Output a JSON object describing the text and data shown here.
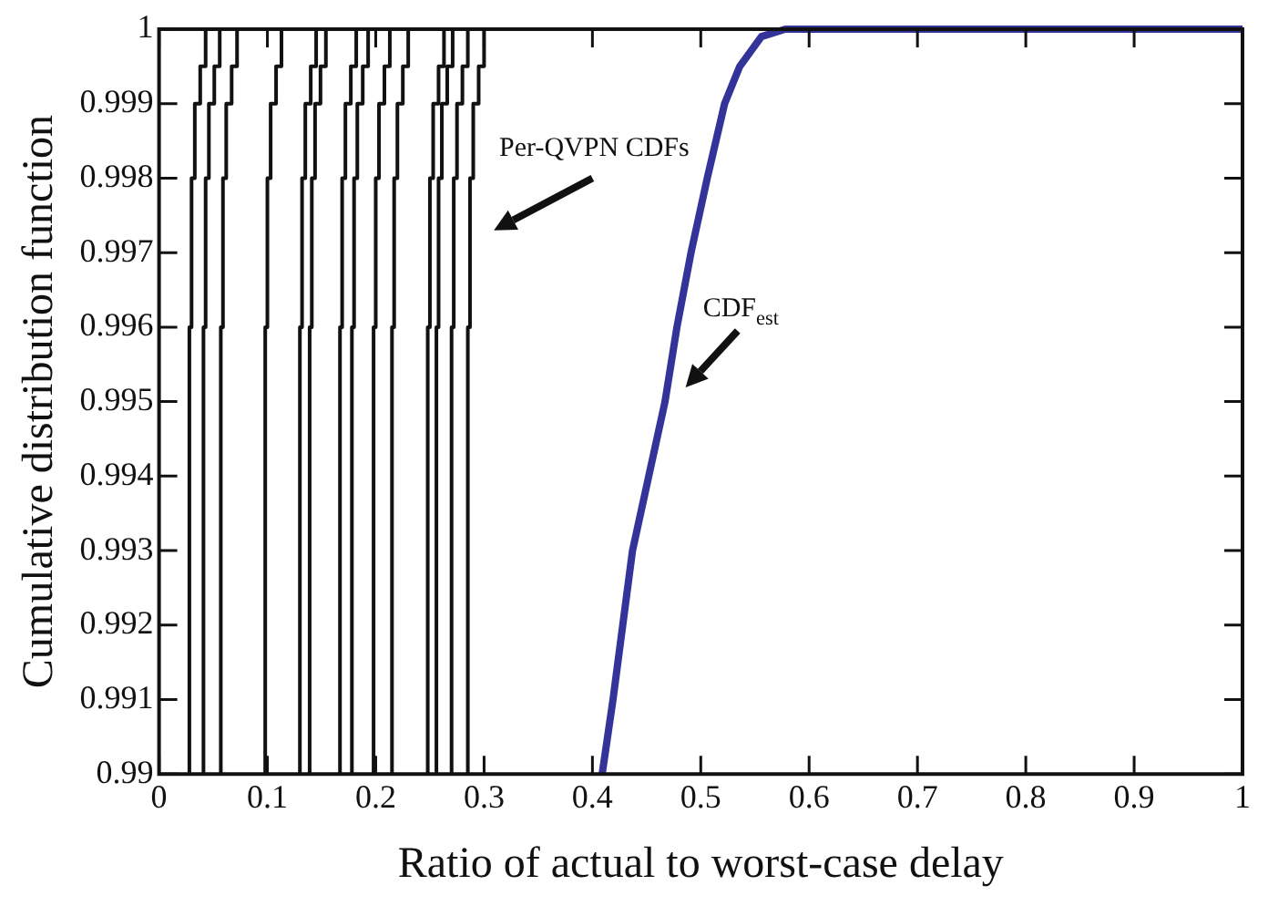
{
  "chart_data": {
    "type": "step",
    "xlabel": "Ratio of actual to worst-case delay",
    "ylabel": "Cumulative distribution function",
    "xlim": [
      0,
      1
    ],
    "ylim": [
      0.99,
      1
    ],
    "xticks": [
      0,
      0.1,
      0.2,
      0.3,
      0.4,
      0.5,
      0.6,
      0.7,
      0.8,
      0.9,
      1
    ],
    "yticks": [
      0.99,
      0.991,
      0.992,
      0.993,
      0.994,
      0.995,
      0.996,
      0.997,
      0.998,
      0.999,
      1
    ],
    "grid": false,
    "legend": false,
    "marker": "none",
    "line_style": "solid",
    "annotations": [
      "Per-QVPN CDFs",
      "CDF$_{est}$"
    ],
    "series": [
      {
        "color": "#111111",
        "x": [
          0.028,
          0.028,
          0.03,
          0.033,
          0.038,
          0.043,
          0.053
        ],
        "values": [
          0.99,
          0.993,
          0.996,
          0.998,
          0.999,
          0.9995,
          1
        ]
      },
      {
        "color": "#111111",
        "x": [
          0.041,
          0.041,
          0.043,
          0.046,
          0.051,
          0.056,
          0.066
        ],
        "values": [
          0.99,
          0.993,
          0.996,
          0.998,
          0.999,
          0.9995,
          1
        ]
      },
      {
        "color": "#111111",
        "x": [
          0.057,
          0.057,
          0.059,
          0.062,
          0.067,
          0.072,
          0.082
        ],
        "values": [
          0.99,
          0.993,
          0.996,
          0.998,
          0.999,
          0.9995,
          1
        ]
      },
      {
        "color": "#111111",
        "x": [
          0.098,
          0.098,
          0.1,
          0.103,
          0.108,
          0.113,
          0.123
        ],
        "values": [
          0.99,
          0.993,
          0.996,
          0.998,
          0.999,
          0.9995,
          1
        ]
      },
      {
        "color": "#111111",
        "x": [
          0.13,
          0.13,
          0.132,
          0.135,
          0.14,
          0.145,
          0.155
        ],
        "values": [
          0.99,
          0.993,
          0.996,
          0.998,
          0.999,
          0.9995,
          1
        ]
      },
      {
        "color": "#111111",
        "x": [
          0.139,
          0.139,
          0.141,
          0.144,
          0.149,
          0.154,
          0.164
        ],
        "values": [
          0.99,
          0.993,
          0.996,
          0.998,
          0.999,
          0.9995,
          1
        ]
      },
      {
        "color": "#111111",
        "x": [
          0.167,
          0.167,
          0.169,
          0.172,
          0.177,
          0.182,
          0.192
        ],
        "values": [
          0.99,
          0.993,
          0.996,
          0.998,
          0.999,
          0.9995,
          1
        ]
      },
      {
        "color": "#111111",
        "x": [
          0.178,
          0.178,
          0.18,
          0.183,
          0.188,
          0.193,
          0.203
        ],
        "values": [
          0.99,
          0.993,
          0.996,
          0.998,
          0.999,
          0.9995,
          1
        ]
      },
      {
        "color": "#111111",
        "x": [
          0.198,
          0.198,
          0.2,
          0.203,
          0.208,
          0.213,
          0.223
        ],
        "values": [
          0.99,
          0.993,
          0.996,
          0.998,
          0.999,
          0.9995,
          1
        ]
      },
      {
        "color": "#111111",
        "x": [
          0.215,
          0.215,
          0.217,
          0.22,
          0.225,
          0.23,
          0.24
        ],
        "values": [
          0.99,
          0.993,
          0.996,
          0.998,
          0.999,
          0.9995,
          1
        ]
      },
      {
        "color": "#111111",
        "x": [
          0.248,
          0.248,
          0.25,
          0.253,
          0.258,
          0.263,
          0.273
        ],
        "values": [
          0.99,
          0.993,
          0.996,
          0.998,
          0.999,
          0.9995,
          1
        ]
      },
      {
        "color": "#111111",
        "x": [
          0.256,
          0.256,
          0.258,
          0.261,
          0.266,
          0.271,
          0.281
        ],
        "values": [
          0.99,
          0.993,
          0.996,
          0.998,
          0.999,
          0.9995,
          1
        ]
      },
      {
        "color": "#111111",
        "x": [
          0.27,
          0.27,
          0.272,
          0.275,
          0.28,
          0.285,
          0.295
        ],
        "values": [
          0.99,
          0.993,
          0.996,
          0.998,
          0.999,
          0.9995,
          1
        ]
      },
      {
        "color": "#111111",
        "x": [
          0.285,
          0.285,
          0.287,
          0.29,
          0.295,
          0.3,
          0.31
        ],
        "values": [
          0.99,
          0.993,
          0.996,
          0.998,
          0.999,
          0.9995,
          1
        ]
      },
      {
        "type": "line",
        "color": "#333399",
        "x": [
          0.409,
          0.419,
          0.437,
          0.467,
          0.478,
          0.491,
          0.506,
          0.522,
          0.536,
          0.556,
          0.578,
          1
        ],
        "values": [
          0.99,
          0.991,
          0.993,
          0.995,
          0.996,
          0.997,
          0.998,
          0.999,
          0.9995,
          0.9999,
          1,
          1
        ]
      }
    ]
  }
}
